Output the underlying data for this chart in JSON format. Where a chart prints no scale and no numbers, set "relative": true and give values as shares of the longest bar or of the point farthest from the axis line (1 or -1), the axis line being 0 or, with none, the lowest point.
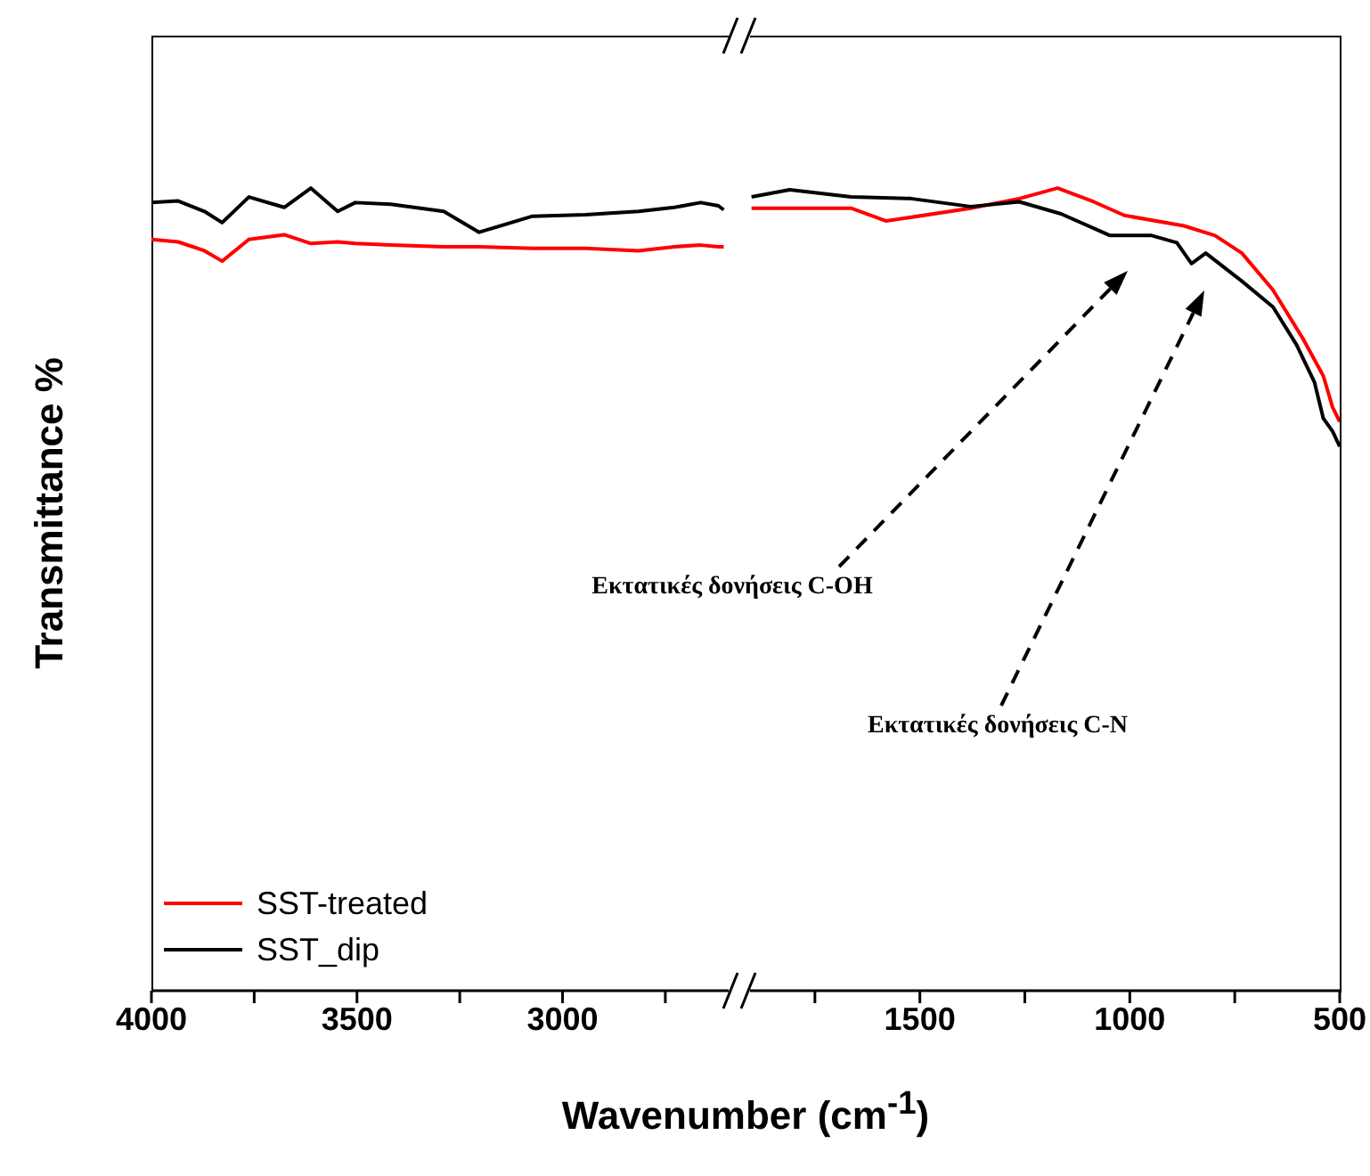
{
  "chart_data": [
    {
      "type": "line",
      "relative": true,
      "xlabel": "Wavenumber (cm$^{-1}$)",
      "ylabel": "Transmittance %",
      "xlim": [
        4000,
        2570
      ],
      "xticks": [
        4000,
        {
          "value": 3750,
          "label": null
        },
        3500,
        {
          "value": 3250,
          "label": null
        },
        3000,
        {
          "value": 2750,
          "label": null
        }
      ],
      "tick_labels": "x",
      "legend": "bottom left",
      "series": [
        {
          "name": "SST-treated",
          "color": "#ff0000",
          "x": [
            4000,
            3935,
            3871,
            3828,
            3763,
            3677,
            3612,
            3547,
            3504,
            3418,
            3289,
            3203,
            3073,
            2944,
            2815,
            2728,
            2664,
            2621,
            2608
          ],
          "values": [
            0.936,
            0.933,
            0.922,
            0.909,
            0.936,
            0.942,
            0.931,
            0.933,
            0.931,
            0.929,
            0.927,
            0.927,
            0.925,
            0.925,
            0.922,
            0.927,
            0.929,
            0.927,
            0.927
          ]
        },
        {
          "name": "SST_dip",
          "color": "#000000",
          "x": [
            4000,
            3935,
            3871,
            3828,
            3763,
            3677,
            3612,
            3547,
            3504,
            3418,
            3289,
            3203,
            3073,
            2944,
            2815,
            2728,
            2664,
            2621,
            2608
          ],
          "values": [
            0.982,
            0.984,
            0.971,
            0.957,
            0.989,
            0.976,
            1,
            0.971,
            0.982,
            0.98,
            0.971,
            0.945,
            0.965,
            0.967,
            0.971,
            0.976,
            0.982,
            0.978,
            0.973
          ]
        }
      ]
    },
    {
      "type": "line",
      "relative": true,
      "xlim": [
        1930,
        500
      ],
      "xticks": [
        1500,
        {
          "value": 1750,
          "label": null
        },
        {
          "value": 1250,
          "label": null
        },
        1000,
        {
          "value": 750,
          "label": null
        },
        500
      ],
      "tick_labels": "x",
      "series": [
        {
          "color": "#ff0000",
          "x": [
            1901,
            1664,
            1580,
            1379,
            1263,
            1172,
            1086,
            1013,
            871,
            797,
            733,
            659,
            586,
            539,
            517,
            500
          ],
          "values": [
            0.975,
            0.975,
            0.959,
            0.975,
            0.987,
            1,
            0.983,
            0.966,
            0.953,
            0.941,
            0.919,
            0.873,
            0.811,
            0.766,
            0.727,
            0.709
          ]
        },
        {
          "color": "#000000",
          "x": [
            1901,
            1810,
            1664,
            1522,
            1379,
            1263,
            1164,
            1047,
            948,
            888,
            853,
            819,
            733,
            659,
            603,
            560,
            539,
            517,
            500
          ],
          "values": [
            0.989,
            0.998,
            0.989,
            0.987,
            0.977,
            0.983,
            0.968,
            0.941,
            0.941,
            0.932,
            0.906,
            0.919,
            0.884,
            0.852,
            0.805,
            0.758,
            0.713,
            0.697,
            0.678
          ]
        }
      ],
      "annotations": [
        "Εκτατικές δονήσεις C-OH",
        "Εκτατικές δονήσεις C-N"
      ]
    }
  ]
}
